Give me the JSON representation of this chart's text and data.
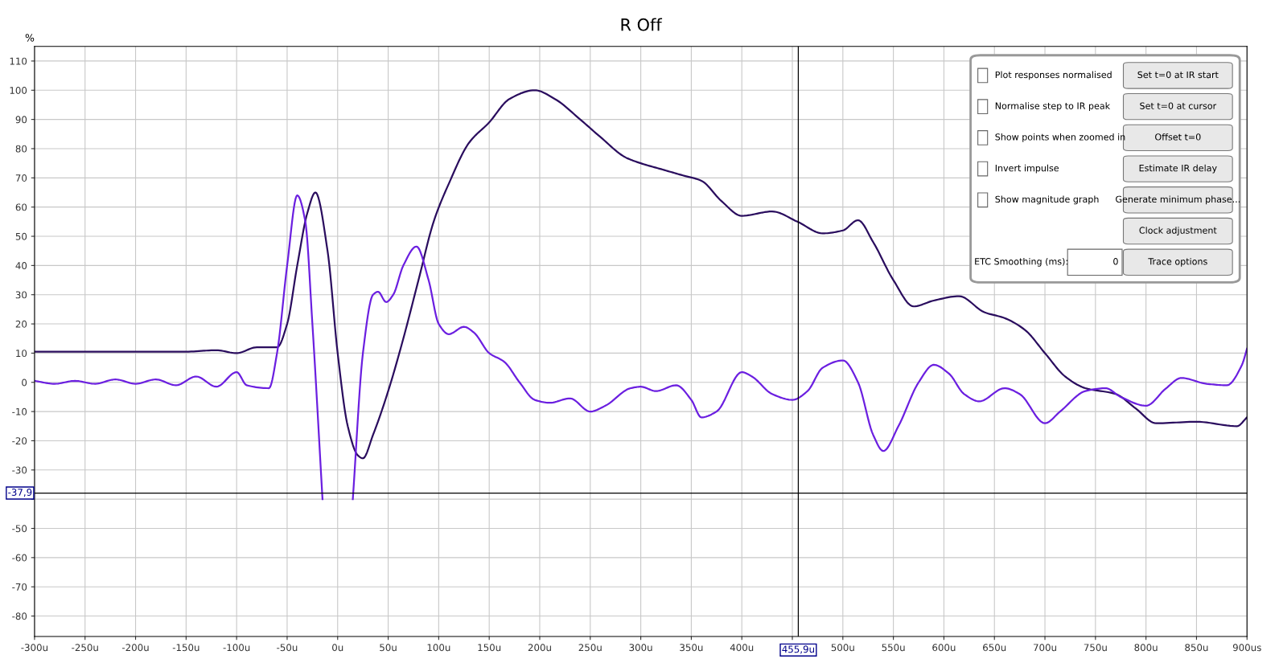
{
  "chart_data": {
    "type": "line",
    "title": "R Off",
    "ylabel": "%",
    "xlim": [
      -300,
      900
    ],
    "ylim": [
      -87,
      115
    ],
    "xticks": [
      {
        "value": -300,
        "label": "-300u"
      },
      {
        "value": -250,
        "label": "-250u"
      },
      {
        "value": -200,
        "label": "-200u"
      },
      {
        "value": -150,
        "label": "-150u"
      },
      {
        "value": -100,
        "label": "-100u"
      },
      {
        "value": -50,
        "label": "-50u"
      },
      {
        "value": 0,
        "label": "0u"
      },
      {
        "value": 50,
        "label": "50u"
      },
      {
        "value": 100,
        "label": "100u"
      },
      {
        "value": 150,
        "label": "150u"
      },
      {
        "value": 200,
        "label": "200u"
      },
      {
        "value": 250,
        "label": "250u"
      },
      {
        "value": 300,
        "label": "300u"
      },
      {
        "value": 350,
        "label": "350u"
      },
      {
        "value": 400,
        "label": "400u"
      },
      {
        "value": 450,
        "label": null
      },
      {
        "value": 500,
        "label": "500u"
      },
      {
        "value": 550,
        "label": "550u"
      },
      {
        "value": 600,
        "label": "600u"
      },
      {
        "value": 650,
        "label": "650u"
      },
      {
        "value": 700,
        "label": "700u"
      },
      {
        "value": 750,
        "label": "750u"
      },
      {
        "value": 800,
        "label": "800u"
      },
      {
        "value": 850,
        "label": "850u"
      },
      {
        "value": 900,
        "label": "900us"
      }
    ],
    "yticks": [
      -80,
      -70,
      -60,
      -50,
      {
        "value": -40,
        "label": null
      },
      -30,
      -20,
      -10,
      0,
      10,
      20,
      30,
      40,
      50,
      60,
      70,
      80,
      90,
      100,
      110
    ],
    "grid": true,
    "marker": "none",
    "line_style": "solid",
    "series": [
      {
        "color": "#2a0d5e",
        "x": [
          -300,
          -250,
          -200,
          -150,
          -120,
          -100,
          -80,
          -60,
          -50,
          -40,
          -30,
          -22,
          -10,
          0,
          10,
          20,
          25,
          35,
          50,
          65,
          80,
          95,
          110,
          130,
          150,
          170,
          195,
          215,
          240,
          260,
          285,
          300,
          320,
          340,
          360,
          380,
          400,
          430,
          455,
          480,
          500,
          515,
          530,
          550,
          570,
          590,
          615,
          640,
          660,
          680,
          700,
          720,
          740,
          770,
          790,
          810,
          850,
          890,
          900
        ],
        "values": [
          10.5,
          10.5,
          10.5,
          10.5,
          11,
          10,
          12,
          12,
          20,
          40,
          58,
          65,
          45,
          10,
          -15,
          -25,
          -26,
          -18,
          -3,
          15,
          35,
          55,
          68,
          82,
          89,
          97,
          100,
          97,
          90,
          84,
          77,
          75,
          73,
          71,
          69,
          62,
          57,
          58.5,
          55,
          51,
          52,
          55.5,
          48,
          35,
          26,
          28,
          29.5,
          24,
          22,
          18,
          10,
          2,
          -2,
          -4,
          -9,
          -14,
          -13.5,
          -15,
          -12
        ]
      },
      {
        "color": "#6b1fe0",
        "x": [
          -300,
          -280,
          -260,
          -240,
          -220,
          -200,
          -180,
          -160,
          -140,
          -120,
          -100,
          -90,
          -68,
          -60,
          -50,
          -40,
          -32,
          -25,
          -15,
          -8,
          7,
          15,
          25,
          35,
          40,
          48,
          55,
          65,
          78,
          90,
          100,
          110,
          125,
          135,
          150,
          165,
          180,
          195,
          210,
          230,
          250,
          265,
          290,
          300,
          315,
          335,
          350,
          360,
          375,
          400,
          410,
          430,
          450,
          465,
          480,
          500,
          515,
          530,
          540,
          555,
          575,
          590,
          605,
          620,
          635,
          660,
          675,
          700,
          715,
          740,
          760,
          775,
          800,
          820,
          835,
          860,
          880,
          895,
          900
        ],
        "values": [
          0.5,
          -0.5,
          0.5,
          -0.5,
          1,
          -0.5,
          1,
          -1,
          2,
          -1.5,
          3.5,
          -1,
          -2,
          10,
          40,
          64,
          55,
          20,
          -40,
          null,
          null,
          -40,
          10,
          30,
          31,
          27.5,
          30,
          40,
          46.5,
          35,
          20,
          16.5,
          19,
          17,
          10,
          7,
          0,
          -6,
          -7,
          -5.5,
          -10,
          -8,
          -2,
          -1.5,
          -3,
          -1,
          -6,
          -12,
          -10,
          3.5,
          2,
          -4,
          -6,
          -3,
          5,
          7.5,
          0,
          -18,
          -23.5,
          -15,
          0,
          6,
          3,
          -4,
          -6.5,
          -2,
          -4,
          -14,
          -10,
          -3,
          -2,
          -5,
          -8,
          -2,
          1.5,
          -0.5,
          -1,
          6,
          11.5
        ]
      }
    ],
    "ref_lines": [
      {
        "axis": "x",
        "value": 455.9,
        "label": "455,9u",
        "color": "#000000"
      },
      {
        "axis": "y",
        "value": -37.9,
        "label": "-37,9",
        "color": "#000000"
      }
    ],
    "annotations": [
      "Plot responses normalised",
      "Normalise step to IR peak",
      "Show points when zoomed in",
      "Invert impulse",
      "Show magnitude graph",
      "ETC Smoothing (ms):",
      "0",
      "Set t=0 at IR start",
      "Set t=0 at cursor",
      "Offset t=0",
      "Estimate IR delay",
      "Generate minimum phase...",
      "Clock adjustment",
      "Trace options"
    ]
  }
}
